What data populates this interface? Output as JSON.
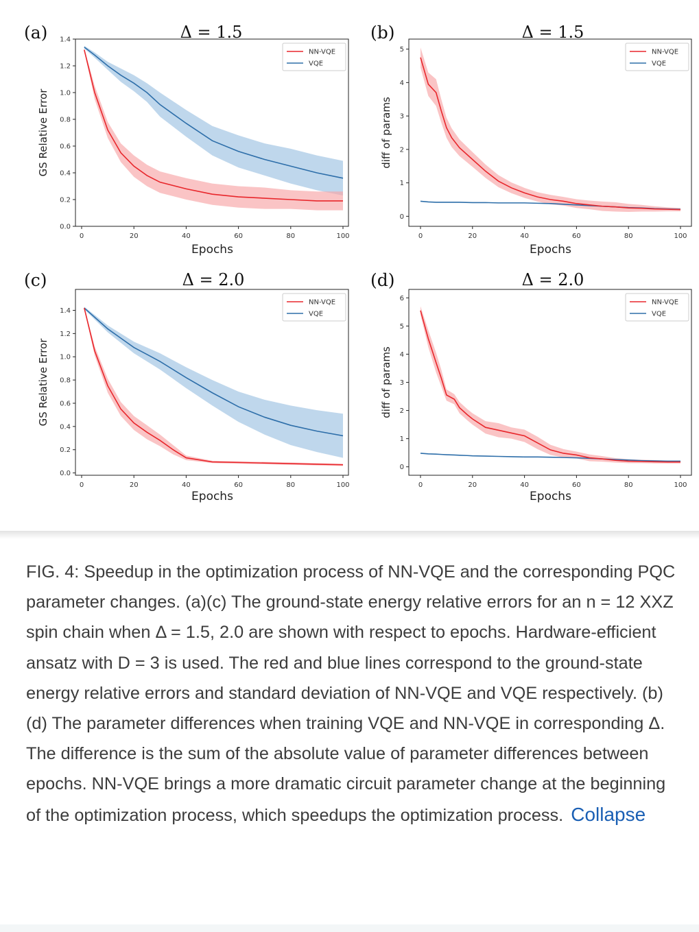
{
  "chart_data": [
    {
      "panel": "(a)",
      "title": "Δ = 1.5",
      "type": "line",
      "xlabel": "Epochs",
      "ylabel": "GS Relative Error",
      "xlim": [
        0,
        100
      ],
      "ylim": [
        0.0,
        1.4
      ],
      "xticks": [
        0,
        20,
        40,
        60,
        80,
        100
      ],
      "yticks": [
        0.0,
        0.2,
        0.4,
        0.6,
        0.8,
        1.0,
        1.2,
        1.4
      ],
      "ytick_labels": [
        "0.0",
        "0.2",
        "0.4",
        "0.6",
        "0.8",
        "1.0",
        "1.2",
        "1.4"
      ],
      "legend": "top-right",
      "x": [
        1,
        5,
        10,
        15,
        20,
        25,
        30,
        40,
        50,
        60,
        70,
        80,
        90,
        100
      ],
      "series": [
        {
          "name": "NN-VQE",
          "color": "#e8262b",
          "band_color": "#f7a4a6",
          "values": [
            1.32,
            1.0,
            0.72,
            0.55,
            0.45,
            0.38,
            0.33,
            0.28,
            0.24,
            0.22,
            0.21,
            0.2,
            0.19,
            0.19
          ],
          "std": [
            0.01,
            0.05,
            0.06,
            0.07,
            0.08,
            0.08,
            0.08,
            0.08,
            0.08,
            0.08,
            0.08,
            0.07,
            0.07,
            0.07
          ]
        },
        {
          "name": "VQE",
          "color": "#2d6ea9",
          "band_color": "#9dc2e2",
          "values": [
            1.34,
            1.28,
            1.2,
            1.13,
            1.07,
            1.0,
            0.91,
            0.77,
            0.64,
            0.56,
            0.5,
            0.45,
            0.4,
            0.36
          ],
          "std": [
            0.01,
            0.02,
            0.03,
            0.05,
            0.06,
            0.07,
            0.09,
            0.1,
            0.11,
            0.12,
            0.12,
            0.13,
            0.13,
            0.13
          ]
        }
      ]
    },
    {
      "panel": "(b)",
      "title": "Δ = 1.5",
      "type": "line",
      "xlabel": "Epochs",
      "ylabel": "diff of params",
      "xlim": [
        0,
        100
      ],
      "ylim": [
        -0.3,
        5.3
      ],
      "xticks": [
        0,
        20,
        40,
        60,
        80,
        100
      ],
      "yticks": [
        0,
        1,
        2,
        3,
        4,
        5
      ],
      "ytick_labels": [
        "0",
        "1",
        "2",
        "3",
        "4",
        "5"
      ],
      "legend": "top-right",
      "x": [
        0,
        3,
        6,
        8,
        10,
        12,
        15,
        20,
        25,
        30,
        35,
        40,
        45,
        50,
        55,
        60,
        65,
        70,
        75,
        80,
        85,
        90,
        95,
        100
      ],
      "series": [
        {
          "name": "NN-VQE",
          "color": "#e8262b",
          "band_color": "#f7a4a6",
          "values": [
            4.75,
            3.95,
            3.7,
            3.15,
            2.65,
            2.35,
            2.05,
            1.7,
            1.35,
            1.05,
            0.85,
            0.7,
            0.58,
            0.5,
            0.45,
            0.38,
            0.34,
            0.3,
            0.28,
            0.25,
            0.24,
            0.22,
            0.21,
            0.2
          ],
          "std": [
            0.3,
            0.35,
            0.4,
            0.35,
            0.3,
            0.28,
            0.25,
            0.22,
            0.2,
            0.18,
            0.16,
            0.15,
            0.14,
            0.14,
            0.13,
            0.13,
            0.13,
            0.14,
            0.14,
            0.12,
            0.1,
            0.08,
            0.06,
            0.05
          ]
        },
        {
          "name": "VQE",
          "color": "#2d6ea9",
          "band_color": "#9dc2e2",
          "values": [
            0.45,
            0.43,
            0.42,
            0.42,
            0.42,
            0.42,
            0.42,
            0.41,
            0.41,
            0.4,
            0.4,
            0.4,
            0.39,
            0.38,
            0.36,
            0.34,
            0.32,
            0.3,
            0.28,
            0.26,
            0.25,
            0.23,
            0.22,
            0.21
          ],
          "std": [
            0.01,
            0.01,
            0.01,
            0.01,
            0.01,
            0.01,
            0.01,
            0.01,
            0.01,
            0.01,
            0.01,
            0.01,
            0.01,
            0.01,
            0.01,
            0.01,
            0.01,
            0.01,
            0.01,
            0.01,
            0.01,
            0.01,
            0.01,
            0.01
          ]
        }
      ]
    },
    {
      "panel": "(c)",
      "title": "Δ = 2.0",
      "type": "line",
      "xlabel": "Epochs",
      "ylabel": "GS Relative Error",
      "xlim": [
        0,
        100
      ],
      "ylim": [
        -0.02,
        1.58
      ],
      "xticks": [
        0,
        20,
        40,
        60,
        80,
        100
      ],
      "yticks": [
        0.0,
        0.2,
        0.4,
        0.6,
        0.8,
        1.0,
        1.2,
        1.4
      ],
      "ytick_labels": [
        "0.0",
        "0.2",
        "0.4",
        "0.6",
        "0.8",
        "1.0",
        "1.2",
        "1.4"
      ],
      "legend": "top-right",
      "x": [
        1,
        5,
        10,
        15,
        20,
        25,
        30,
        35,
        40,
        50,
        60,
        70,
        80,
        90,
        100
      ],
      "series": [
        {
          "name": "NN-VQE",
          "color": "#e8262b",
          "band_color": "#f7a4a6",
          "values": [
            1.42,
            1.05,
            0.75,
            0.55,
            0.43,
            0.35,
            0.28,
            0.2,
            0.13,
            0.095,
            0.09,
            0.085,
            0.08,
            0.075,
            0.07
          ],
          "std": [
            0.01,
            0.04,
            0.06,
            0.06,
            0.06,
            0.06,
            0.05,
            0.04,
            0.02,
            0.01,
            0.01,
            0.01,
            0.01,
            0.01,
            0.01
          ]
        },
        {
          "name": "VQE",
          "color": "#2d6ea9",
          "band_color": "#9dc2e2",
          "values": [
            1.42,
            1.34,
            1.24,
            1.16,
            1.08,
            1.02,
            0.96,
            0.89,
            0.82,
            0.69,
            0.57,
            0.48,
            0.41,
            0.36,
            0.32
          ],
          "std": [
            0.01,
            0.02,
            0.03,
            0.04,
            0.05,
            0.06,
            0.07,
            0.08,
            0.09,
            0.11,
            0.13,
            0.15,
            0.17,
            0.18,
            0.19
          ]
        }
      ]
    },
    {
      "panel": "(d)",
      "title": "Δ = 2.0",
      "type": "line",
      "xlabel": "Epochs",
      "ylabel": "diff of params",
      "xlim": [
        0,
        100
      ],
      "ylim": [
        -0.3,
        6.3
      ],
      "xticks": [
        0,
        20,
        40,
        60,
        80,
        100
      ],
      "yticks": [
        0,
        1,
        2,
        3,
        4,
        5,
        6
      ],
      "ytick_labels": [
        "0",
        "1",
        "2",
        "3",
        "4",
        "5",
        "6"
      ],
      "legend": "top-right",
      "x": [
        0,
        3,
        6,
        8,
        10,
        13,
        15,
        18,
        20,
        25,
        30,
        35,
        40,
        45,
        50,
        55,
        60,
        65,
        70,
        75,
        80,
        85,
        90,
        95,
        100
      ],
      "series": [
        {
          "name": "NN-VQE",
          "color": "#e8262b",
          "band_color": "#f7a4a6",
          "values": [
            5.55,
            4.55,
            3.7,
            3.15,
            2.55,
            2.4,
            2.1,
            1.85,
            1.7,
            1.4,
            1.3,
            1.2,
            1.1,
            0.85,
            0.6,
            0.48,
            0.42,
            0.32,
            0.28,
            0.23,
            0.2,
            0.19,
            0.18,
            0.17,
            0.17
          ],
          "std": [
            0.15,
            0.3,
            0.35,
            0.3,
            0.2,
            0.18,
            0.2,
            0.2,
            0.2,
            0.22,
            0.25,
            0.2,
            0.22,
            0.22,
            0.18,
            0.15,
            0.12,
            0.12,
            0.1,
            0.08,
            0.07,
            0.06,
            0.06,
            0.05,
            0.05
          ]
        },
        {
          "name": "VQE",
          "color": "#2d6ea9",
          "band_color": "#9dc2e2",
          "values": [
            0.48,
            0.46,
            0.45,
            0.44,
            0.43,
            0.42,
            0.41,
            0.4,
            0.39,
            0.38,
            0.37,
            0.36,
            0.35,
            0.35,
            0.34,
            0.33,
            0.32,
            0.3,
            0.28,
            0.26,
            0.24,
            0.22,
            0.21,
            0.2,
            0.2
          ],
          "std": [
            0.01,
            0.01,
            0.01,
            0.01,
            0.01,
            0.01,
            0.01,
            0.01,
            0.01,
            0.01,
            0.01,
            0.01,
            0.01,
            0.01,
            0.01,
            0.01,
            0.01,
            0.01,
            0.01,
            0.01,
            0.01,
            0.01,
            0.01,
            0.01,
            0.01
          ]
        }
      ]
    }
  ],
  "caption": {
    "text": "FIG. 4: Speedup in the optimization process of NN-VQE and the corresponding PQC parameter changes. (a)(c) The ground-state energy relative errors for an n = 12 XXZ spin chain when Δ = 1.5, 2.0 are shown with respect to epochs. Hardware-efficient ansatz with D = 3 is used. The red and blue lines correspond to the ground-state energy relative errors and standard deviation of NN-VQE and VQE respectively. (b)(d) The parameter differences when training VQE and NN-VQE in corresponding Δ. The difference is the sum of the absolute value of parameter differences between epochs. NN-VQE brings a more dramatic circuit parameter change at the beginning of the optimization process, which speedups the optimization process.",
    "collapse_label": "Collapse",
    "text_color": "#3c3c3c",
    "link_color": "#1a5fb4"
  }
}
